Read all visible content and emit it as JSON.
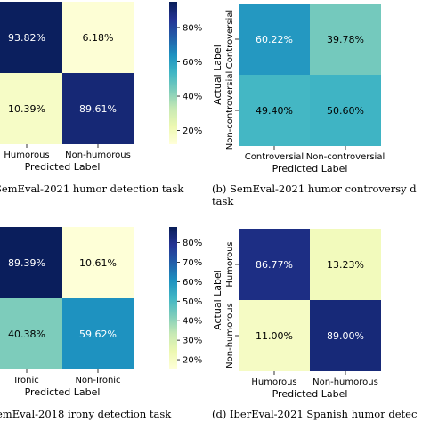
{
  "colorbar_ticks": [
    "20%",
    "40%",
    "60%",
    "80%"
  ],
  "colorbar_ticks_c": [
    "20%",
    "30%",
    "40%",
    "50%",
    "60%",
    "70%",
    "80%"
  ],
  "chart_data": [
    {
      "type": "heatmap",
      "caption": "SemEval-2021 humor detection task",
      "xlabel": "Predicted Label",
      "ylabel": "",
      "x_categories": [
        "Humorous",
        "Non-humorous"
      ],
      "y_categories": [],
      "values": [
        [
          93.82,
          6.18
        ],
        [
          10.39,
          89.61
        ]
      ],
      "labels": [
        [
          "93.82%",
          "6.18%"
        ],
        [
          "10.39%",
          "89.61%"
        ]
      ]
    },
    {
      "type": "heatmap",
      "caption": "(b) SemEval-2021 humor controversy d",
      "caption2": "task",
      "xlabel": "Predicted Label",
      "ylabel": "Actual Label",
      "x_categories": [
        "Controversial",
        "Non-controversial"
      ],
      "y_categories": [
        "Controversial",
        "Non-controversial"
      ],
      "values": [
        [
          60.22,
          39.78
        ],
        [
          49.4,
          50.6
        ]
      ],
      "labels": [
        [
          "60.22%",
          "39.78%"
        ],
        [
          "49.40%",
          "50.60%"
        ]
      ]
    },
    {
      "type": "heatmap",
      "caption": "emEval-2018 irony detection task",
      "xlabel": "Predicted Label",
      "ylabel": "",
      "x_categories": [
        "Ironic",
        "Non-Ironic"
      ],
      "y_categories": [],
      "values": [
        [
          89.39,
          10.61
        ],
        [
          40.38,
          59.62
        ]
      ],
      "labels": [
        [
          "89.39%",
          "10.61%"
        ],
        [
          "40.38%",
          "59.62%"
        ]
      ]
    },
    {
      "type": "heatmap",
      "caption": "(d) IberEval-2021 Spanish humor detec",
      "xlabel": "Predicted Label",
      "ylabel": "Actual Label",
      "x_categories": [
        "Humorous",
        "Non-humorous"
      ],
      "y_categories": [
        "Humorous",
        "Non-humorous"
      ],
      "values": [
        [
          86.77,
          13.23
        ],
        [
          11.0,
          89.0
        ]
      ],
      "labels": [
        [
          "86.77%",
          "13.23%"
        ],
        [
          "11.00%",
          "89.00%"
        ]
      ]
    }
  ]
}
